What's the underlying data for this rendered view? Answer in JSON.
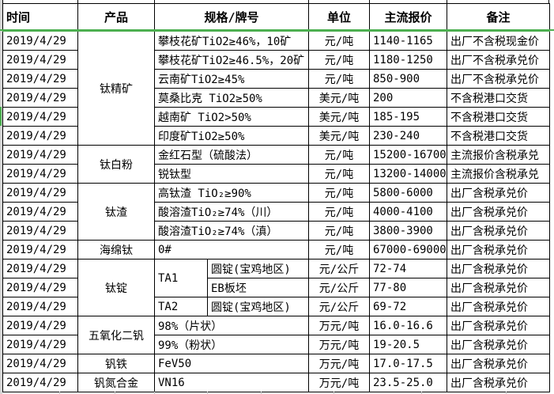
{
  "table": {
    "headers": [
      "时间",
      "产品",
      "规格/牌号",
      "单位",
      "主流报价",
      "备注"
    ],
    "rows": [
      {
        "date": "2019/4/29",
        "product": "钛精矿",
        "product_span": 6,
        "spec": "攀枝花矿TiO2≥46%，10矿",
        "unit": "元/吨",
        "price": "1140-1165",
        "note": "出厂不含税现金价"
      },
      {
        "date": "2019/4/29",
        "spec": "攀枝花矿TiO2≥46.5%，20矿",
        "unit": "元/吨",
        "price": "1180-1250",
        "note": "出厂不含税承兑价"
      },
      {
        "date": "2019/4/29",
        "spec": "云南矿TiO2≥45%",
        "unit": "元/吨",
        "price": "850-900",
        "note": "出厂不含税承兑价"
      },
      {
        "date": "2019/4/29",
        "spec": "莫桑比克 TiO2≥50%",
        "unit": "美元/吨",
        "price": "200",
        "note": "不含税港口交货"
      },
      {
        "date": "2019/4/29",
        "spec": "越南矿 TiO2>50%",
        "unit": "美元/吨",
        "price": "185-195",
        "note": "不含税港口交货"
      },
      {
        "date": "2019/4/29",
        "spec": "印度矿TiO2≥50%",
        "unit": "美元/吨",
        "price": "230-240",
        "note": "不含税港口交货"
      },
      {
        "date": "2019/4/29",
        "product": "钛白粉",
        "product_span": 2,
        "spec": "金红石型（硫酸法）",
        "unit": "元/吨",
        "price": "15200-16700",
        "note": "主流报价含税承兑"
      },
      {
        "date": "2019/4/29",
        "spec": "锐钛型",
        "unit": "元/吨",
        "price": "13200-14000",
        "note": "主流报价含税承兑"
      },
      {
        "date": "2019/4/29",
        "product": "钛渣",
        "product_span": 3,
        "spec": "高钛渣 TiO₂≥90%",
        "unit": "元/吨",
        "price": "5800-6000",
        "note": "出厂含税承兑价"
      },
      {
        "date": "2019/4/29",
        "spec": "酸溶渣TiO₂≥74%（川）",
        "unit": "元/吨",
        "price": "4000-4100",
        "note": "出厂含税承兑价"
      },
      {
        "date": "2019/4/29",
        "spec": "酸溶渣TiO₂≥74%（滇）",
        "unit": "元/吨",
        "price": "3800-3900",
        "note": "出厂含税承兑价"
      },
      {
        "date": "2019/4/29",
        "product": "海绵钛",
        "product_span": 1,
        "spec": "0#",
        "unit": "元/吨",
        "price": "67000-69000",
        "note": "出厂含税承兑价"
      },
      {
        "date": "2019/4/29",
        "product": "钛锭",
        "product_span": 3,
        "grade": "TA1",
        "grade_span": 2,
        "form": "圆锭(宝鸡地区)",
        "unit": "元/公斤",
        "price": "72-74",
        "note": "出厂含税承兑价"
      },
      {
        "date": "2019/4/29",
        "form": "EB板坯",
        "unit": "元/公斤",
        "price": "77-80",
        "note": "出厂含税承兑价"
      },
      {
        "date": "2019/4/29",
        "grade": "TA2",
        "grade_span": 1,
        "form": "圆锭(宝鸡地区)",
        "unit": "元/公斤",
        "price": "69-72",
        "note": "出厂含税承兑价"
      },
      {
        "date": "2019/4/29",
        "product": "五氧化二钒",
        "product_span": 2,
        "spec": "98%（片状）",
        "unit": "万元/吨",
        "price": "16.0-16.6",
        "note": "出厂含税承兑价"
      },
      {
        "date": "2019/4/29",
        "spec": "99%（粉状）",
        "unit": "万元/吨",
        "price": "19-20.5",
        "note": "出厂含税承兑价"
      },
      {
        "date": "2019/4/29",
        "product": "钒铁",
        "product_span": 1,
        "spec": "FeV50",
        "unit": "万元/吨",
        "price": "17.0-17.5",
        "note": "出厂含税承兑价"
      },
      {
        "date": "2019/4/29",
        "product": "钒氮合金",
        "product_span": 1,
        "spec": "VN16",
        "unit": "万元/吨",
        "price": "23.5-25.0",
        "note": "出厂含税承兑价"
      }
    ]
  },
  "colors": {
    "header_underline_green": "#4caf50",
    "table_border": "#000000",
    "gridline_gray": "#c8c8c8",
    "left_strip_gray": "#d6d6d6",
    "background": "#ffffff",
    "text": "#000000"
  }
}
